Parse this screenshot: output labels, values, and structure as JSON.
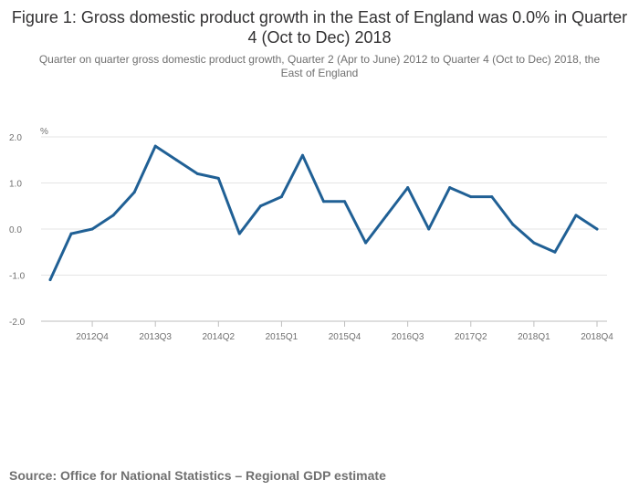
{
  "title": "Figure 1: Gross domestic product growth in the East of England was 0.0% in Quarter 4 (Oct to Dec) 2018",
  "subtitle": "Quarter on quarter gross domestic product growth, Quarter 2 (Apr to June) 2012 to Quarter 4 (Oct to Dec) 2018, the East of England",
  "source": "Source: Office for National Statistics – Regional GDP estimate",
  "colors": {
    "line": "#206095",
    "grid": "#e5e5e5",
    "axis": "#bebebe"
  },
  "chart_data": {
    "type": "line",
    "title": "Figure 1: Gross domestic product growth in the East of England was 0.0% in Quarter 4 (Oct to Dec) 2018",
    "ylabel": "%",
    "xlabel": "",
    "ylim": [
      -2.0,
      2.0
    ],
    "yticks": [
      2.0,
      1.0,
      0.0,
      -1.0,
      -2.0
    ],
    "ytick_labels": [
      "2.0",
      "1.0",
      "0.0",
      "-1.0",
      "-2.0"
    ],
    "categories": [
      "2012Q2",
      "2012Q3",
      "2012Q4",
      "2013Q1",
      "2013Q2",
      "2013Q3",
      "2013Q4",
      "2014Q1",
      "2014Q2",
      "2014Q3",
      "2014Q4",
      "2015Q1",
      "2015Q2",
      "2015Q3",
      "2015Q4",
      "2016Q1",
      "2016Q2",
      "2016Q3",
      "2016Q4",
      "2017Q1",
      "2017Q2",
      "2017Q3",
      "2017Q4",
      "2018Q1",
      "2018Q2",
      "2018Q3",
      "2018Q4"
    ],
    "xtick_labels": [
      "2012Q4",
      "2013Q3",
      "2014Q2",
      "2015Q1",
      "2015Q4",
      "2016Q3",
      "2017Q2",
      "2018Q1",
      "2018Q4"
    ],
    "series": [
      {
        "name": "East of England",
        "values": [
          -1.1,
          -0.1,
          0.0,
          0.3,
          0.8,
          1.8,
          1.5,
          1.2,
          1.1,
          -0.1,
          0.5,
          0.7,
          1.6,
          0.6,
          0.6,
          -0.3,
          0.3,
          0.9,
          0.0,
          0.9,
          0.7,
          0.7,
          0.1,
          -0.3,
          -0.5,
          0.3,
          0.0
        ]
      }
    ],
    "grid": true
  }
}
